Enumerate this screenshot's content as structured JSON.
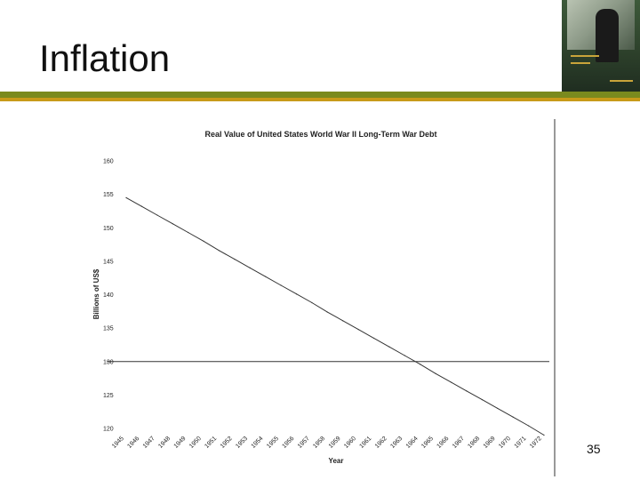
{
  "slide": {
    "title": "Inflation",
    "page_number": "35"
  },
  "colors": {
    "rule_green": "#7a8a1e",
    "rule_gold": "#c89a1a",
    "line": "#333333"
  },
  "chart_data": {
    "type": "line",
    "title": "Real Value of United States World War II Long-Term War Debt",
    "xlabel": "Year",
    "ylabel": "Billions of US$",
    "ylim": [
      120,
      160
    ],
    "yticks": [
      160,
      155,
      150,
      145,
      140,
      135,
      130,
      125,
      120
    ],
    "ytick_labels": [
      "160",
      "155",
      "150",
      "145",
      "140",
      "135",
      "130",
      "125",
      "120"
    ],
    "categories": [
      "1945",
      "1946",
      "1947",
      "1948",
      "1949",
      "1950",
      "1951",
      "1952",
      "1953",
      "1954",
      "1955",
      "1956",
      "1957",
      "1958",
      "1959",
      "1960",
      "1961",
      "1962",
      "1963",
      "1964",
      "1965",
      "1966",
      "1967",
      "1968",
      "1969",
      "1970",
      "1971",
      "1972"
    ],
    "series": [
      {
        "values": [
          154.5,
          153.2,
          151.9,
          150.6,
          149.3,
          148.0,
          146.6,
          145.3,
          144.0,
          142.7,
          141.4,
          140.1,
          138.8,
          137.4,
          136.1,
          134.8,
          133.5,
          132.2,
          130.9,
          129.6,
          128.2,
          126.9,
          125.6,
          124.3,
          123.0,
          121.7,
          120.4,
          119.0
        ]
      }
    ],
    "reference_line": 130,
    "grid": false,
    "legend": "none"
  }
}
